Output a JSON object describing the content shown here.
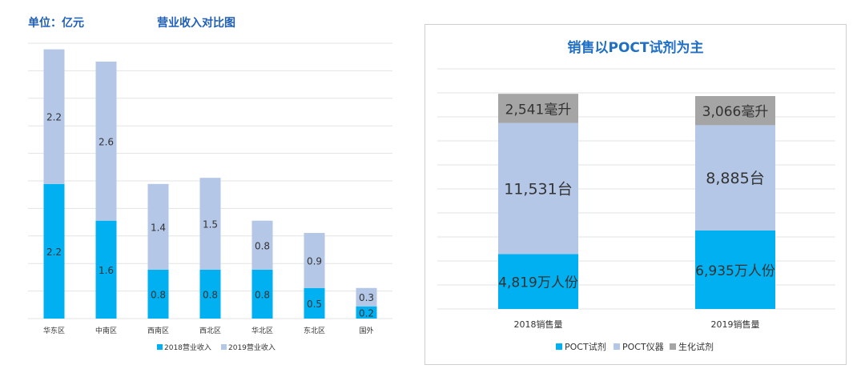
{
  "left": {
    "unit_label": "单位：亿元",
    "chart_data": {
      "type": "bar",
      "stacked": true,
      "title": "营业收入对比图",
      "categories": [
        "华东区",
        "中南区",
        "西南区",
        "西北区",
        "华北区",
        "东北区",
        "国外"
      ],
      "series": [
        {
          "name": "2018营业收入",
          "values": [
            2.2,
            1.6,
            0.8,
            0.8,
            0.8,
            0.5,
            0.2
          ],
          "color": "#00b0f0"
        },
        {
          "name": "2019营业收入",
          "values": [
            2.2,
            2.6,
            1.4,
            1.5,
            0.8,
            0.9,
            0.3
          ],
          "color": "#b4c7e7"
        }
      ],
      "ylim": [
        0,
        4.5
      ],
      "grid": true,
      "legend": "bottom"
    }
  },
  "right": {
    "chart_data": {
      "type": "bar",
      "stacked": true,
      "title": "销售以POCT试剂为主",
      "categories": [
        "2018销售量",
        "2019销售量"
      ],
      "series": [
        {
          "name": "POCT试剂",
          "labels": [
            "4,819万人份",
            "6,935万人份"
          ],
          "shares": [
            0.245,
            0.35
          ],
          "color": "#00b0f0"
        },
        {
          "name": "POCT仪器",
          "labels": [
            "11,531台",
            "8,885台"
          ],
          "shares": [
            0.585,
            0.47
          ],
          "color": "#b4c7e7"
        },
        {
          "name": "生化试剂",
          "labels": [
            "2,541毫升",
            "3,066毫升"
          ],
          "shares": [
            0.13,
            0.13
          ],
          "color": "#a5a5a5"
        }
      ],
      "grid": true,
      "legend": "bottom"
    }
  }
}
